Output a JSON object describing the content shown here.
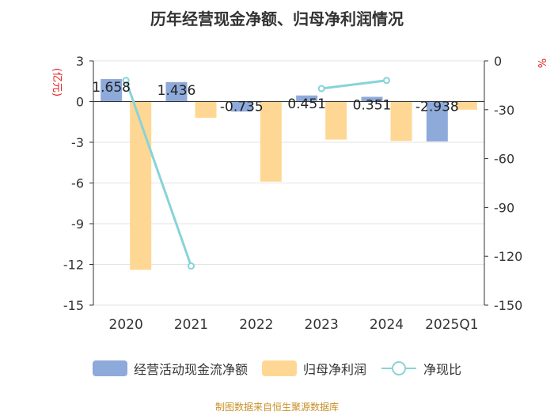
{
  "chart_data": {
    "type": "bar+line",
    "title": "历年经营现金净额、归母净利润情况",
    "categories": [
      "2020",
      "2021",
      "2022",
      "2023",
      "2024",
      "2025Q1"
    ],
    "left_axis": {
      "label": "(亿元)",
      "min": -15,
      "max": 3,
      "ticks": [
        3,
        0,
        -3,
        -6,
        -9,
        -12,
        -15
      ]
    },
    "right_axis": {
      "label": "%",
      "min": -150,
      "max": 0,
      "ticks": [
        0,
        -30,
        -60,
        -90,
        -120,
        -150
      ]
    },
    "series": [
      {
        "name": "经营活动现金流净额",
        "type": "bar",
        "axis": "left",
        "color": "#8eaadb",
        "values": [
          1.658,
          1.436,
          -0.735,
          0.451,
          0.351,
          -2.938
        ],
        "labels": [
          "1.658",
          "1.436",
          "-0.735",
          "0.451",
          "0.351",
          "-2.938"
        ]
      },
      {
        "name": "归母净利润",
        "type": "bar",
        "axis": "left",
        "color": "#ffd794",
        "values": [
          -12.4,
          -1.2,
          -5.9,
          -2.8,
          -2.9,
          -0.6
        ]
      },
      {
        "name": "净现比",
        "type": "line",
        "axis": "right",
        "color": "#88d3d8",
        "values": [
          -12,
          -126,
          null,
          -17,
          -12,
          null
        ]
      }
    ]
  },
  "legend": [
    "经营活动现金流净额",
    "归母净利润",
    "净现比"
  ],
  "footer": "制图数据来自恒生聚源数据库"
}
